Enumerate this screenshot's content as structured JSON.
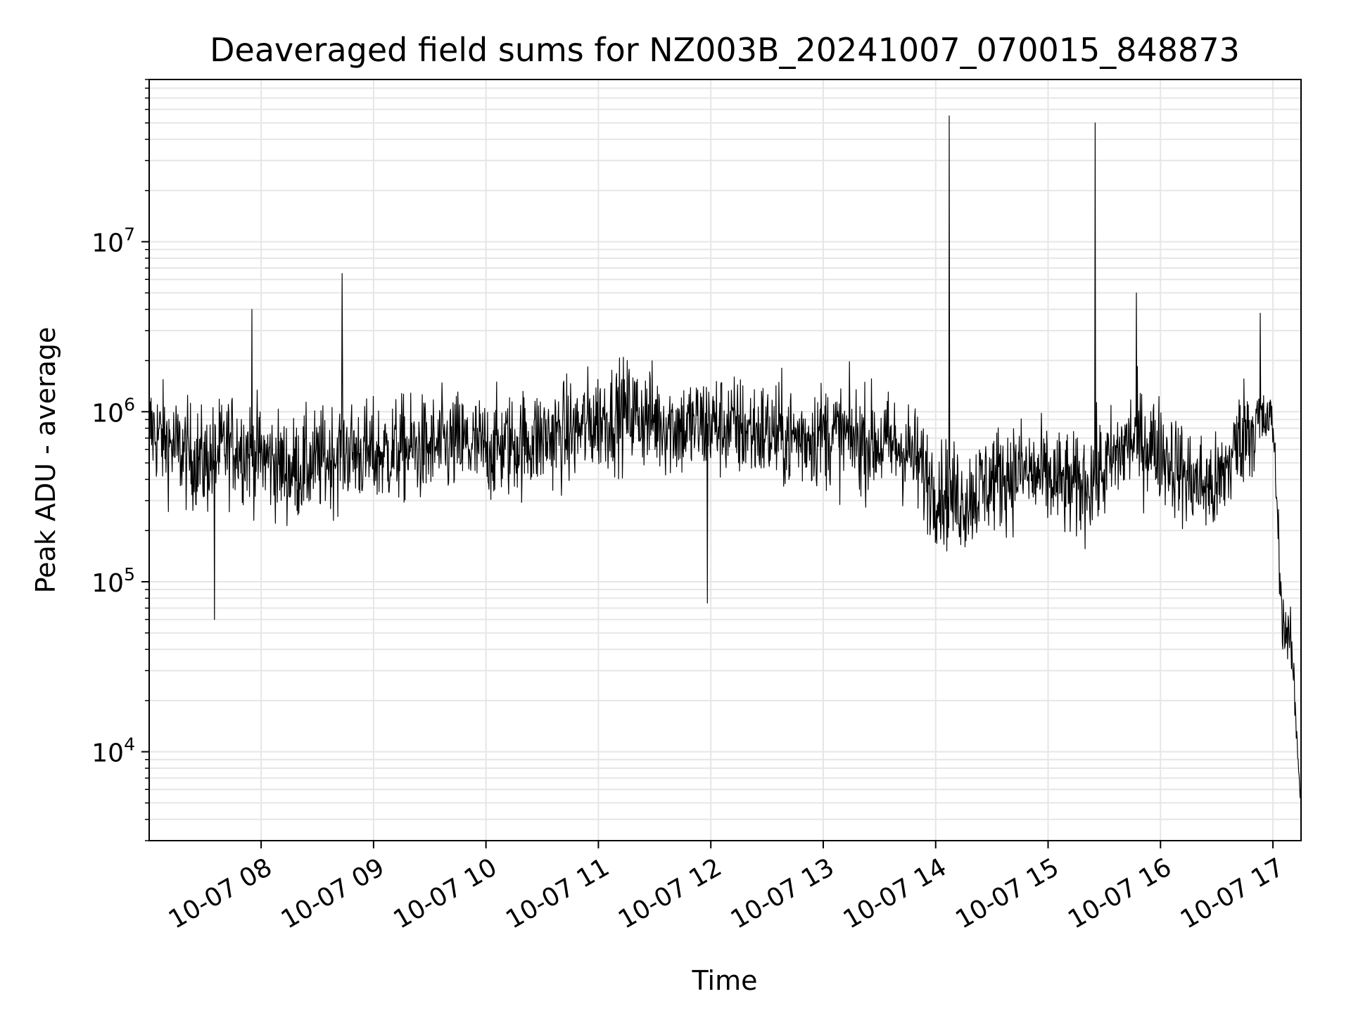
{
  "chart_data": {
    "type": "line",
    "title": "Deaveraged field sums for NZ003B_20241007_070015_848873",
    "xlabel": "Time",
    "ylabel": "Peak ADU - average",
    "y_scale": "log",
    "ylim": [
      3000,
      90000000
    ],
    "xlim": [
      "2024-10-07 07:00:15",
      "2024-10-07 17:15"
    ],
    "grid": true,
    "line_color": "#000000",
    "grid_color": "#e6e6e6",
    "x_ticks": [
      {
        "value": "2024-10-07 08:00",
        "label": "10-07 08"
      },
      {
        "value": "2024-10-07 09:00",
        "label": "10-07 09"
      },
      {
        "value": "2024-10-07 10:00",
        "label": "10-07 10"
      },
      {
        "value": "2024-10-07 11:00",
        "label": "10-07 11"
      },
      {
        "value": "2024-10-07 12:00",
        "label": "10-07 12"
      },
      {
        "value": "2024-10-07 13:00",
        "label": "10-07 13"
      },
      {
        "value": "2024-10-07 14:00",
        "label": "10-07 14"
      },
      {
        "value": "2024-10-07 15:00",
        "label": "10-07 15"
      },
      {
        "value": "2024-10-07 16:00",
        "label": "10-07 16"
      },
      {
        "value": "2024-10-07 17:00",
        "label": "10-07 17"
      }
    ],
    "y_ticks": [
      {
        "value": 10000,
        "base": "10",
        "exp": "4"
      },
      {
        "value": 100000,
        "base": "10",
        "exp": "5"
      },
      {
        "value": 1000000,
        "base": "10",
        "exp": "6"
      },
      {
        "value": 10000000,
        "base": "10",
        "exp": "7"
      }
    ],
    "series": [
      {
        "x": [
          "2024-10-07 07:00",
          "2024-10-07 07:15",
          "2024-10-07 07:30",
          "2024-10-07 07:45",
          "2024-10-07 08:00",
          "2024-10-07 08:15",
          "2024-10-07 08:30",
          "2024-10-07 08:45",
          "2024-10-07 09:00",
          "2024-10-07 09:15",
          "2024-10-07 09:30",
          "2024-10-07 09:45",
          "2024-10-07 10:00",
          "2024-10-07 10:15",
          "2024-10-07 10:30",
          "2024-10-07 10:45",
          "2024-10-07 11:00",
          "2024-10-07 11:15",
          "2024-10-07 11:30",
          "2024-10-07 11:45",
          "2024-10-07 12:00",
          "2024-10-07 12:15",
          "2024-10-07 12:30",
          "2024-10-07 12:45",
          "2024-10-07 13:00",
          "2024-10-07 13:15",
          "2024-10-07 13:30",
          "2024-10-07 13:45",
          "2024-10-07 14:00",
          "2024-10-07 14:15",
          "2024-10-07 14:30",
          "2024-10-07 14:45",
          "2024-10-07 15:00",
          "2024-10-07 15:15",
          "2024-10-07 15:30",
          "2024-10-07 15:45",
          "2024-10-07 16:00",
          "2024-10-07 16:15",
          "2024-10-07 16:30",
          "2024-10-07 16:45",
          "2024-10-07 17:00",
          "2024-10-07 17:05",
          "2024-10-07 17:10",
          "2024-10-07 17:15"
        ],
        "y": [
          800000,
          600000,
          500000,
          650000,
          550000,
          450000,
          500000,
          600000,
          550000,
          600000,
          600000,
          650000,
          600000,
          650000,
          700000,
          750000,
          900000,
          1000000,
          900000,
          800000,
          850000,
          800000,
          750000,
          700000,
          750000,
          700000,
          650000,
          600000,
          350000,
          300000,
          400000,
          450000,
          400000,
          350000,
          450000,
          700000,
          600000,
          400000,
          350000,
          800000,
          900000,
          60000,
          40000,
          5000
        ],
        "spikes": [
          {
            "x": "2024-10-07 07:35",
            "y": 60000
          },
          {
            "x": "2024-10-07 07:55",
            "y": 4000000
          },
          {
            "x": "2024-10-07 08:43",
            "y": 6500000
          },
          {
            "x": "2024-10-07 11:58",
            "y": 75000
          },
          {
            "x": "2024-10-07 14:07",
            "y": 55000000
          },
          {
            "x": "2024-10-07 15:25",
            "y": 50000000
          },
          {
            "x": "2024-10-07 15:47",
            "y": 5000000
          },
          {
            "x": "2024-10-07 16:53",
            "y": 3800000
          }
        ]
      }
    ]
  }
}
